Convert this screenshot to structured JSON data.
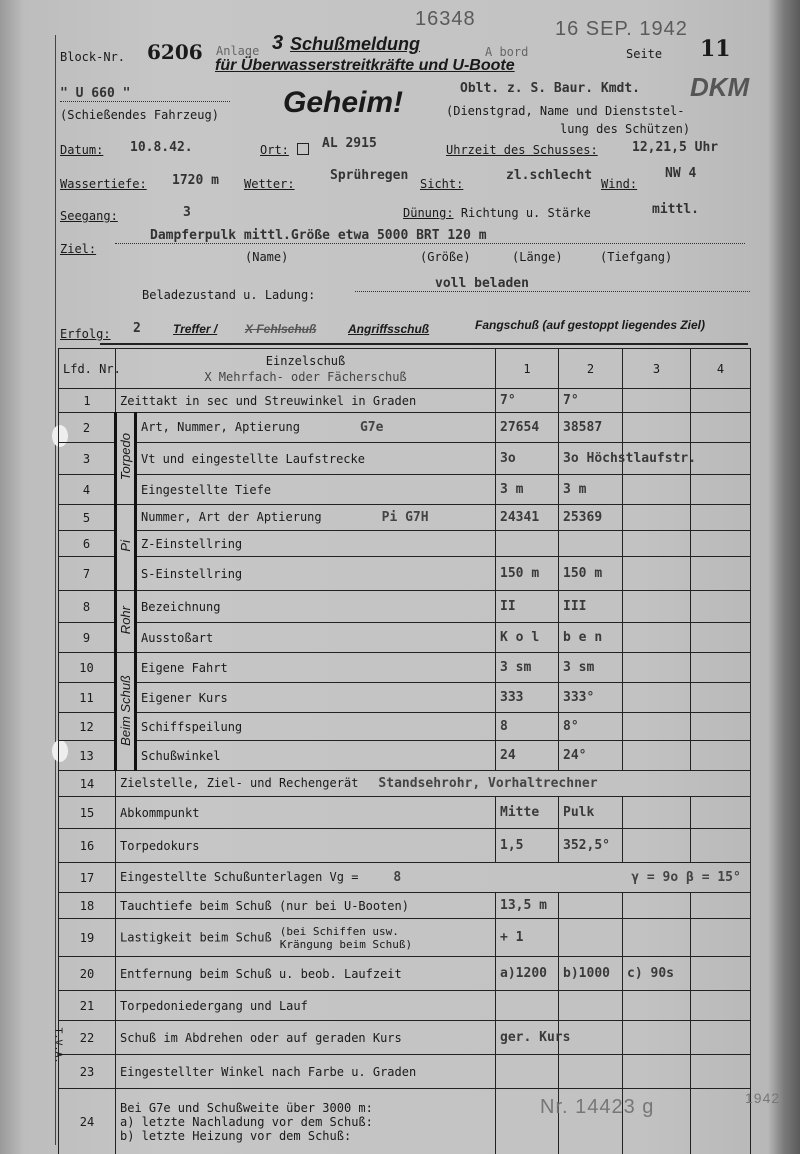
{
  "stamps": {
    "number": "16348",
    "date": "16 SEP. 1942",
    "anlage": "Anlage",
    "a_bord": "A bord",
    "bottom": "Nr. 14423 g",
    "bottom_year": "1942",
    "margin": "T.V.A."
  },
  "header": {
    "block_label": "Block-Nr.",
    "block_value": "6206",
    "anlage_num": "3",
    "title1": "Schußmeldung",
    "title2": "für Überwasserstreitkräfte und U-Boote",
    "page_label": "Seite",
    "page_value": "11",
    "secret": "Geheim!",
    "signature": "DKM"
  },
  "vessel": {
    "value": "\" U 660 \"",
    "caption": "(Schießendes Fahrzeug)"
  },
  "shooter": {
    "value": "Oblt. z. S. Baur. Kmdt.",
    "caption1": "(Dienstgrad, Name und Dienststel-",
    "caption2": "lung des Schützen)"
  },
  "fields": {
    "datum_label": "Datum:",
    "datum": "10.8.42.",
    "ort_label": "Ort:",
    "ort": "AL 2915",
    "uhrzeit_label": "Uhrzeit des Schusses:",
    "uhrzeit": "12,21,5 Uhr",
    "wassertiefe_label": "Wassertiefe:",
    "wassertiefe": "1720 m",
    "wetter_label": "Wetter:",
    "wetter": "Sprühregen",
    "sicht_label": "Sicht:",
    "sicht": "zl.schlecht",
    "wind_label": "Wind:",
    "wind": "NW 4",
    "seegang_label": "Seegang:",
    "seegang": "3",
    "duenung_label": "Dünung:",
    "duenung_text": "Richtung u. Stärke",
    "duenung": "mittl.",
    "ziel_label": "Ziel:",
    "ziel": "Dampferpulk mittl.Größe etwa 5000 BRT 120 m",
    "cap_name": "(Name)",
    "cap_groesse": "(Größe)",
    "cap_laenge": "(Länge)",
    "cap_tiefgang": "(Tiefgang)",
    "beladung_label": "Beladezustand u. Ladung:",
    "beladung": "voll beladen",
    "erfolg_label": "Erfolg:",
    "erfolg": "2",
    "treffer": "Treffer /",
    "fehlschuss": "X Fehlschuß",
    "angriff": "Angriffsschuß",
    "fangschuss": "Fangschuß (auf gestoppt liegendes Ziel)"
  },
  "table": {
    "head": {
      "nr": "Lfd. Nr.",
      "einzel": "Einzelschuß",
      "mehrfach": "X Mehrfach- oder Fächerschuß",
      "cols": [
        "1",
        "2",
        "3",
        "4"
      ]
    },
    "groups": {
      "torpedo": "Torpedo",
      "pi": "Pi",
      "rohr": "Rohr",
      "beim": "Beim Schuß"
    },
    "rows": [
      {
        "nr": "1",
        "label": "Zeittakt in sec und Streuwinkel in Graden",
        "values": [
          "7°",
          "7°",
          "",
          ""
        ]
      },
      {
        "nr": "2",
        "label": "Art, Nummer, Aptierung",
        "extra": "G7e",
        "values": [
          "27654",
          "38587",
          "",
          ""
        ]
      },
      {
        "nr": "3",
        "label": "Vt und eingestellte Laufstrecke",
        "values": [
          "3o",
          "3o Höchstlaufstr.",
          "",
          ""
        ]
      },
      {
        "nr": "4",
        "label": "Eingestellte Tiefe",
        "values": [
          "3 m",
          "3 m",
          "",
          ""
        ]
      },
      {
        "nr": "5",
        "label": "Nummer, Art der Aptierung",
        "extra": "Pi G7H",
        "values": [
          "24341",
          "25369",
          "",
          ""
        ]
      },
      {
        "nr": "6",
        "label": "Z-Einstellring",
        "values": [
          "",
          "",
          "",
          ""
        ]
      },
      {
        "nr": "7",
        "label": "S-Einstellring",
        "values": [
          "150 m",
          "150 m",
          "",
          ""
        ]
      },
      {
        "nr": "8",
        "label": "Bezeichnung",
        "values": [
          "II",
          "III",
          "",
          ""
        ]
      },
      {
        "nr": "9",
        "label": "Ausstoßart",
        "values": [
          "K o l",
          "b e n",
          "",
          ""
        ]
      },
      {
        "nr": "10",
        "label": "Eigene Fahrt",
        "values": [
          "3 sm",
          "3 sm",
          "",
          ""
        ]
      },
      {
        "nr": "11",
        "label": "Eigener Kurs",
        "values": [
          "333",
          "333°",
          "",
          ""
        ]
      },
      {
        "nr": "12",
        "label": "Schiffspeilung",
        "values": [
          "8",
          "8°",
          "",
          ""
        ]
      },
      {
        "nr": "13",
        "label": "Schußwinkel",
        "values": [
          "24",
          "24°",
          "",
          ""
        ]
      },
      {
        "nr": "14",
        "label": "Zielstelle, Ziel- und Rechengerät",
        "extra": "Standsehrohr, Vorhaltrechner"
      },
      {
        "nr": "15",
        "label": "Abkommpunkt",
        "values": [
          "Mitte",
          "Pulk",
          "",
          ""
        ]
      },
      {
        "nr": "16",
        "label": "Torpedokurs",
        "values": [
          "1,5",
          "352,5°",
          "",
          ""
        ]
      },
      {
        "nr": "17",
        "label": "Eingestellte Schußunterlagen  Vg =",
        "extra": "8",
        "extra2": "γ = 9o  β = 15°"
      },
      {
        "nr": "18",
        "label": "Tauchtiefe beim Schuß (nur bei U-Booten)",
        "values": [
          "13,5 m",
          "",
          "",
          ""
        ]
      },
      {
        "nr": "19",
        "label": "Lastigkeit beim Schuß",
        "label2": "(bei Schiffen usw. Krängung beim Schuß)",
        "values": [
          "+ 1",
          "",
          "",
          ""
        ]
      },
      {
        "nr": "20",
        "label": "Entfernung beim Schuß u. beob. Laufzeit",
        "values": [
          "a)1200",
          "b)1000",
          "c) 90s",
          ""
        ]
      },
      {
        "nr": "21",
        "label": "Torpedoniedergang und Lauf",
        "values": [
          "",
          "",
          "",
          ""
        ]
      },
      {
        "nr": "22",
        "label": "Schuß im Abdrehen oder auf geraden Kurs",
        "values": [
          "ger. Kurs",
          "",
          "",
          ""
        ]
      },
      {
        "nr": "23",
        "label": "Eingestellter Winkel nach Farbe u. Graden",
        "values": [
          "",
          "",
          "",
          ""
        ]
      },
      {
        "nr": "24",
        "label": "Bei G7e und Schußweite über 3000 m:",
        "label2": "a) letzte Nachladung vor dem Schuß:",
        "label3": "b) letzte Heizung vor dem Schuß:",
        "values": [
          "",
          "",
          "",
          ""
        ]
      }
    ]
  }
}
